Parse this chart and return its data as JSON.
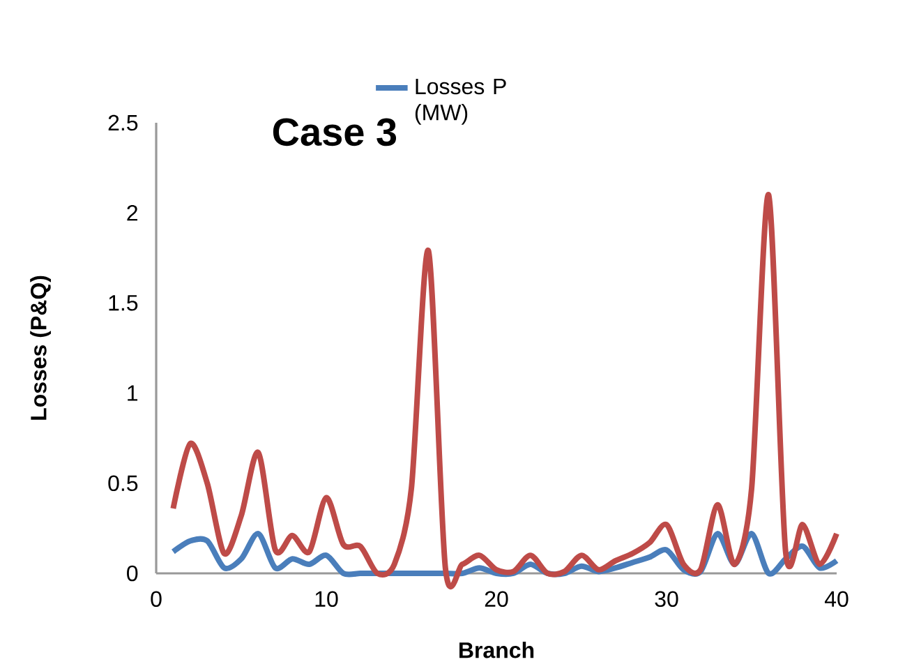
{
  "chart_data": {
    "type": "line",
    "title": "Case 3",
    "xlabel": "Branch",
    "ylabel": "Losses (P&Q)",
    "x": [
      1,
      2,
      3,
      4,
      5,
      6,
      7,
      8,
      9,
      10,
      11,
      12,
      13,
      14,
      15,
      16,
      17,
      18,
      19,
      20,
      21,
      22,
      23,
      24,
      25,
      26,
      27,
      28,
      29,
      30,
      31,
      32,
      33,
      34,
      35,
      36,
      37,
      38,
      39,
      40
    ],
    "series": [
      {
        "name": "Losses P (MW)",
        "color": "#4a7ebb",
        "values": [
          0.12,
          0.18,
          0.18,
          0.03,
          0.08,
          0.22,
          0.03,
          0.08,
          0.05,
          0.1,
          0,
          0,
          0,
          0,
          0,
          0,
          0,
          0,
          0.03,
          0,
          0,
          0.05,
          0,
          0,
          0.04,
          0.01,
          0.03,
          0.06,
          0.09,
          0.13,
          0.02,
          0.01,
          0.22,
          0.05,
          0.22,
          0,
          0.08,
          0.15,
          0.03,
          0.07
        ]
      },
      {
        "color": "#be4b48",
        "values": [
          0.36,
          0.72,
          0.5,
          0.11,
          0.32,
          0.67,
          0.13,
          0.21,
          0.12,
          0.42,
          0.16,
          0.15,
          0,
          0.05,
          0.47,
          1.79,
          0.03,
          0.05,
          0.1,
          0.02,
          0.01,
          0.1,
          0,
          0.01,
          0.1,
          0.02,
          0.07,
          0.11,
          0.17,
          0.27,
          0.05,
          0.02,
          0.38,
          0.05,
          0.47,
          2.1,
          0.12,
          0.27,
          0.05,
          0.22
        ]
      }
    ],
    "xlim": [
      0,
      40
    ],
    "ylim": [
      0,
      2.5
    ],
    "xticks": [
      0,
      10,
      20,
      30,
      40
    ],
    "yticks": [
      0,
      0.5,
      1,
      1.5,
      2,
      2.5
    ],
    "legend": "top",
    "grid": false,
    "marker": "none",
    "line_style": "solid"
  }
}
